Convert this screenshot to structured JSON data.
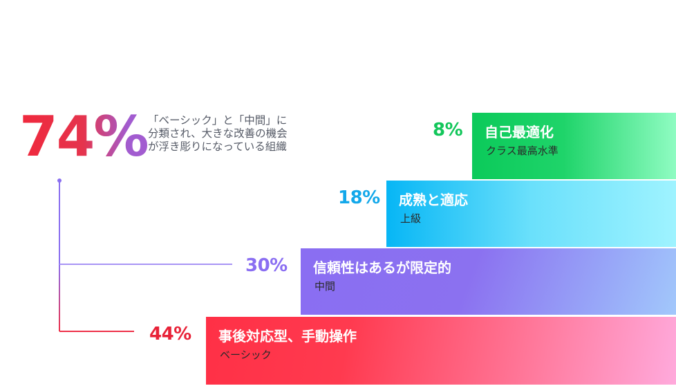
{
  "headline": {
    "percentage": "74%",
    "description": "「ベーシック」と「中間」に\n分類され、大きな改善の機会\nが浮き彫りになっている組織"
  },
  "tiers": [
    {
      "percentage": "8%",
      "title": "自己最適化",
      "subtitle": "クラス最高水準",
      "color": "#12c65a"
    },
    {
      "percentage": "18%",
      "title": "成熟と適応",
      "subtitle": "上級",
      "color": "#13a8ea"
    },
    {
      "percentage": "30%",
      "title": "信頼性はあるが限定的",
      "subtitle": "中間",
      "color": "#8a6ef2"
    },
    {
      "percentage": "44%",
      "title": "事後対応型、手動操作",
      "subtitle": "ベーシック",
      "color": "#e82238"
    }
  ],
  "chart_data": {
    "type": "bar",
    "title": "",
    "categories": [
      "自己最適化",
      "成熟と適応",
      "信頼性はあるが限定的",
      "事後対応型、手動操作"
    ],
    "subcategories": [
      "クラス最高水準",
      "上級",
      "中間",
      "ベーシック"
    ],
    "values": [
      8,
      18,
      30,
      44
    ],
    "unit": "%",
    "annotation": {
      "value": 74,
      "text": "「ベーシック」と「中間」に分類され、大きな改善の機会が浮き彫りになっている組織",
      "groups": [
        "中間",
        "ベーシック"
      ]
    },
    "grid": false,
    "legend": "none"
  }
}
